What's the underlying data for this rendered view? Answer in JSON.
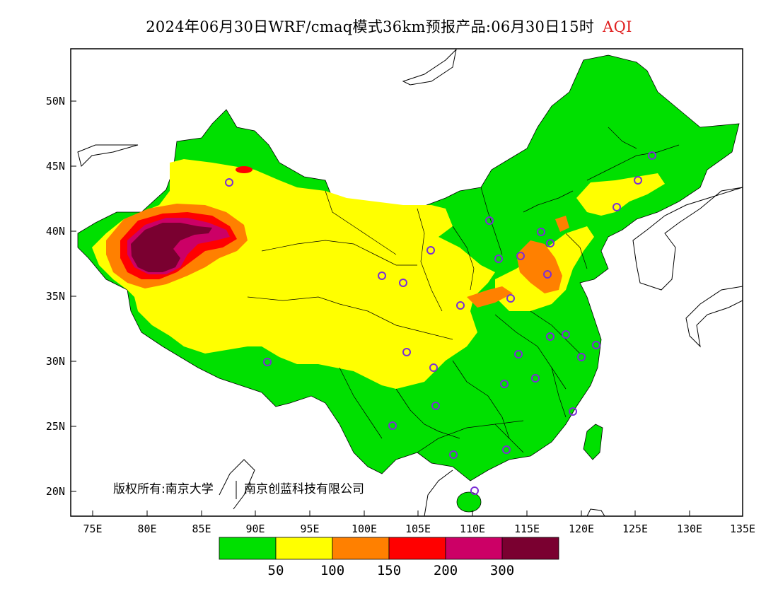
{
  "title": {
    "main": "2024年06月30日WRF/cmaq模式36km预报产品:06月30日15时",
    "variable": "AQI"
  },
  "map": {
    "lat_ticks": [
      "50N",
      "45N",
      "40N",
      "35N",
      "30N",
      "25N",
      "20N"
    ],
    "lon_ticks": [
      "75E",
      "80E",
      "85E",
      "90E",
      "95E",
      "100E",
      "105E",
      "110E",
      "115E",
      "120E",
      "125E",
      "130E",
      "135E"
    ],
    "copyright": "版权所有:南京大学",
    "copyright_2": "南京创蓝科技有限公司",
    "colors": {
      "good": "#00e000",
      "moderate": "#ffff00",
      "usg": "#ff8000",
      "unhealthy": "#ff0000",
      "very_unhealthy": "#cc0066",
      "hazardous": "#7a0030",
      "station_ring": "#7b2ed6"
    }
  },
  "legend": {
    "labels": [
      "50",
      "100",
      "150",
      "200",
      "300"
    ],
    "colors": [
      "#00e000",
      "#ffff00",
      "#ff8000",
      "#ff0000",
      "#cc0066",
      "#7a0030"
    ]
  }
}
